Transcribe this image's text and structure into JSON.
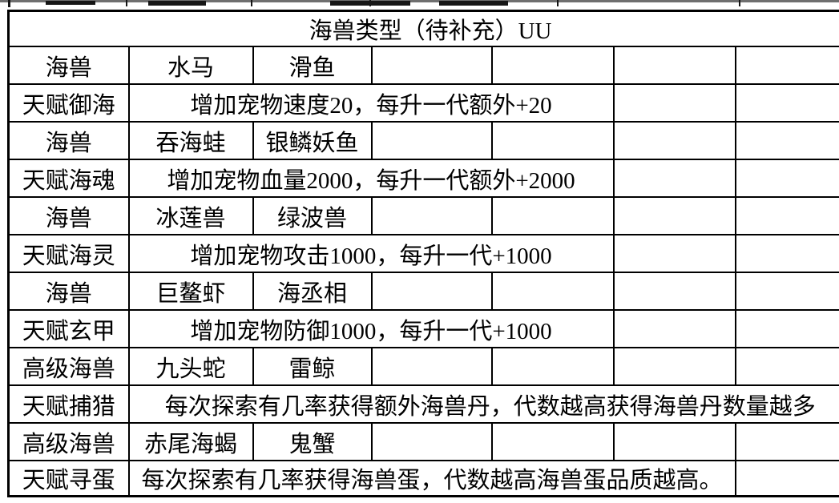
{
  "page": {
    "top_strip_color": "#6f6f6f",
    "border_color": "#000000",
    "background": "#ffffff"
  },
  "table": {
    "title": "海兽类型（待补充）UU",
    "columns": 7,
    "rows": [
      {
        "class": "title-row",
        "cells": [
          {
            "text": "海兽类型（待补充）UU",
            "colspan": 7,
            "name": "table-title"
          }
        ]
      },
      {
        "cells": [
          {
            "text": "海兽"
          },
          {
            "text": "水马"
          },
          {
            "text": "滑鱼"
          },
          {
            "text": ""
          },
          {
            "text": ""
          },
          {
            "text": ""
          },
          {
            "text": ""
          }
        ]
      },
      {
        "cells": [
          {
            "text": "天赋御海"
          },
          {
            "text": "增加宠物速度20，每升一代额外+20",
            "colspan": 4
          },
          {
            "text": ""
          },
          {
            "text": ""
          }
        ]
      },
      {
        "cells": [
          {
            "text": "海兽"
          },
          {
            "text": "吞海蛙"
          },
          {
            "text": "银鳞妖鱼"
          },
          {
            "text": ""
          },
          {
            "text": ""
          },
          {
            "text": ""
          },
          {
            "text": ""
          }
        ]
      },
      {
        "cells": [
          {
            "text": "天赋海魂"
          },
          {
            "text": "增加宠物血量2000，每升一代额外+2000",
            "colspan": 4
          },
          {
            "text": ""
          },
          {
            "text": ""
          }
        ]
      },
      {
        "cells": [
          {
            "text": "海兽"
          },
          {
            "text": "冰莲兽"
          },
          {
            "text": "绿波兽"
          },
          {
            "text": ""
          },
          {
            "text": ""
          },
          {
            "text": ""
          },
          {
            "text": ""
          }
        ]
      },
      {
        "cells": [
          {
            "text": "天赋海灵"
          },
          {
            "text": "增加宠物攻击1000，每升一代+1000",
            "colspan": 4
          },
          {
            "text": ""
          },
          {
            "text": ""
          }
        ]
      },
      {
        "cells": [
          {
            "text": "海兽"
          },
          {
            "text": "巨鳌虾"
          },
          {
            "text": "海丞相"
          },
          {
            "text": ""
          },
          {
            "text": ""
          },
          {
            "text": ""
          },
          {
            "text": ""
          }
        ]
      },
      {
        "cells": [
          {
            "text": "天赋玄甲"
          },
          {
            "text": "增加宠物防御1000，每升一代+1000",
            "colspan": 4
          },
          {
            "text": ""
          },
          {
            "text": ""
          }
        ]
      },
      {
        "cells": [
          {
            "text": "高级海兽"
          },
          {
            "text": "九头蛇"
          },
          {
            "text": "雷鲸"
          },
          {
            "text": ""
          },
          {
            "text": ""
          },
          {
            "text": ""
          },
          {
            "text": ""
          }
        ]
      },
      {
        "cells": [
          {
            "text": "天赋捕猎"
          },
          {
            "text": "每次探索有几率获得额外海兽丹，代数越高获得海兽丹数量越多",
            "colspan": 6
          }
        ]
      },
      {
        "cells": [
          {
            "text": "高级海兽"
          },
          {
            "text": "赤尾海蝎"
          },
          {
            "text": "鬼蟹"
          },
          {
            "text": ""
          },
          {
            "text": ""
          },
          {
            "text": ""
          },
          {
            "text": ""
          }
        ]
      },
      {
        "class": "last-row",
        "cells": [
          {
            "text": "天赋寻蛋"
          },
          {
            "text": "每次探索有几率获得海兽蛋，代数越高海兽蛋品质越高。",
            "colspan": 5
          },
          {
            "text": ""
          }
        ]
      }
    ]
  }
}
